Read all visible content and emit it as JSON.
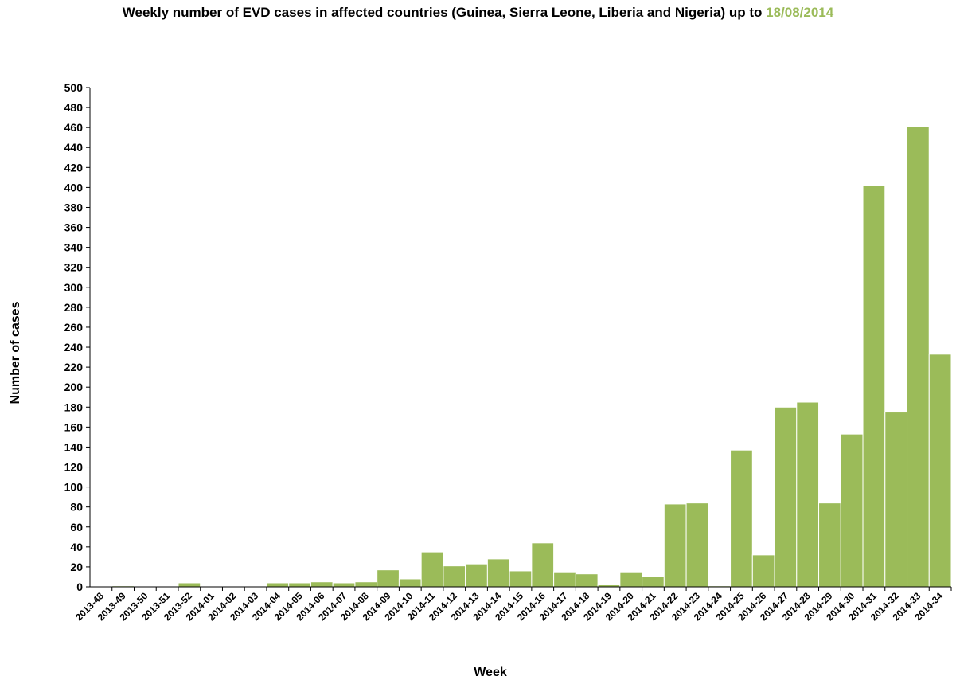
{
  "title_prefix": "Weekly number of EVD cases in affected countries (Guinea, Sierra Leone, Liberia and Nigeria) up to",
  "title_date": "18/08/2014",
  "colors": {
    "bar": "#9BBB59",
    "title_date": "#9BBB59",
    "axis": "#000000"
  },
  "chart_data": {
    "type": "bar",
    "title": "Weekly number of EVD cases in affected countries (Guinea, Sierra Leone, Liberia and Nigeria) up to 18/08/2014",
    "xlabel": "Week",
    "ylabel": "Number of cases",
    "ylim": [
      0,
      500
    ],
    "yticks": [
      0,
      20,
      40,
      60,
      80,
      100,
      120,
      140,
      160,
      180,
      200,
      220,
      240,
      260,
      280,
      300,
      320,
      340,
      360,
      380,
      400,
      420,
      440,
      460,
      480,
      500
    ],
    "grid": false,
    "categories": [
      "2013-48",
      "2013-49",
      "2013-50",
      "2013-51",
      "2013-52",
      "2014-01",
      "2014-02",
      "2014-03",
      "2014-04",
      "2014-05",
      "2014-06",
      "2014-07",
      "2014-08",
      "2014-09",
      "2014-10",
      "2014-11",
      "2014-12",
      "2014-13",
      "2014-14",
      "2014-15",
      "2014-16",
      "2014-17",
      "2014-18",
      "2014-19",
      "2014-20",
      "2014-21",
      "2014-22",
      "2014-23",
      "2014-24",
      "2014-25",
      "2014-26",
      "2014-27",
      "2014-28",
      "2014-29",
      "2014-30",
      "2014-31",
      "2014-32",
      "2014-33",
      "2014-34"
    ],
    "values": [
      0,
      1,
      0,
      0,
      4,
      0,
      0,
      0,
      4,
      4,
      5,
      4,
      5,
      17,
      8,
      35,
      21,
      23,
      28,
      16,
      44,
      15,
      13,
      2,
      15,
      10,
      83,
      84,
      1,
      137,
      32,
      180,
      185,
      84,
      153,
      402,
      175,
      461,
      233
    ]
  }
}
